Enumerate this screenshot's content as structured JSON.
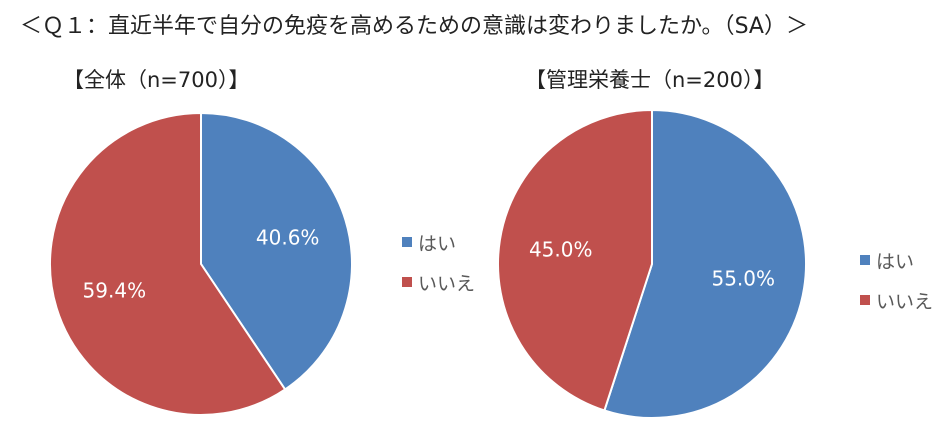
{
  "title": "＜Ｑ１：直近半年で自分の免疫を高めるための意識は変わりましたか。（SA）＞",
  "colors": {
    "yes": "#4f81bd",
    "no": "#c0504d"
  },
  "chart_data": [
    {
      "type": "pie",
      "title": "【全体（n=700）】",
      "categories": [
        "はい",
        "いいえ"
      ],
      "values": [
        40.6,
        59.4
      ],
      "labels": [
        "40.6%",
        "59.4%"
      ],
      "legend_position": "right"
    },
    {
      "type": "pie",
      "title": "【管理栄養士（n=200）】",
      "categories": [
        "はい",
        "いいえ"
      ],
      "values": [
        55.0,
        45.0
      ],
      "labels": [
        "55.0%",
        "45.0%"
      ],
      "legend_position": "right"
    }
  ],
  "legend": [
    "はい",
    "いいえ"
  ]
}
